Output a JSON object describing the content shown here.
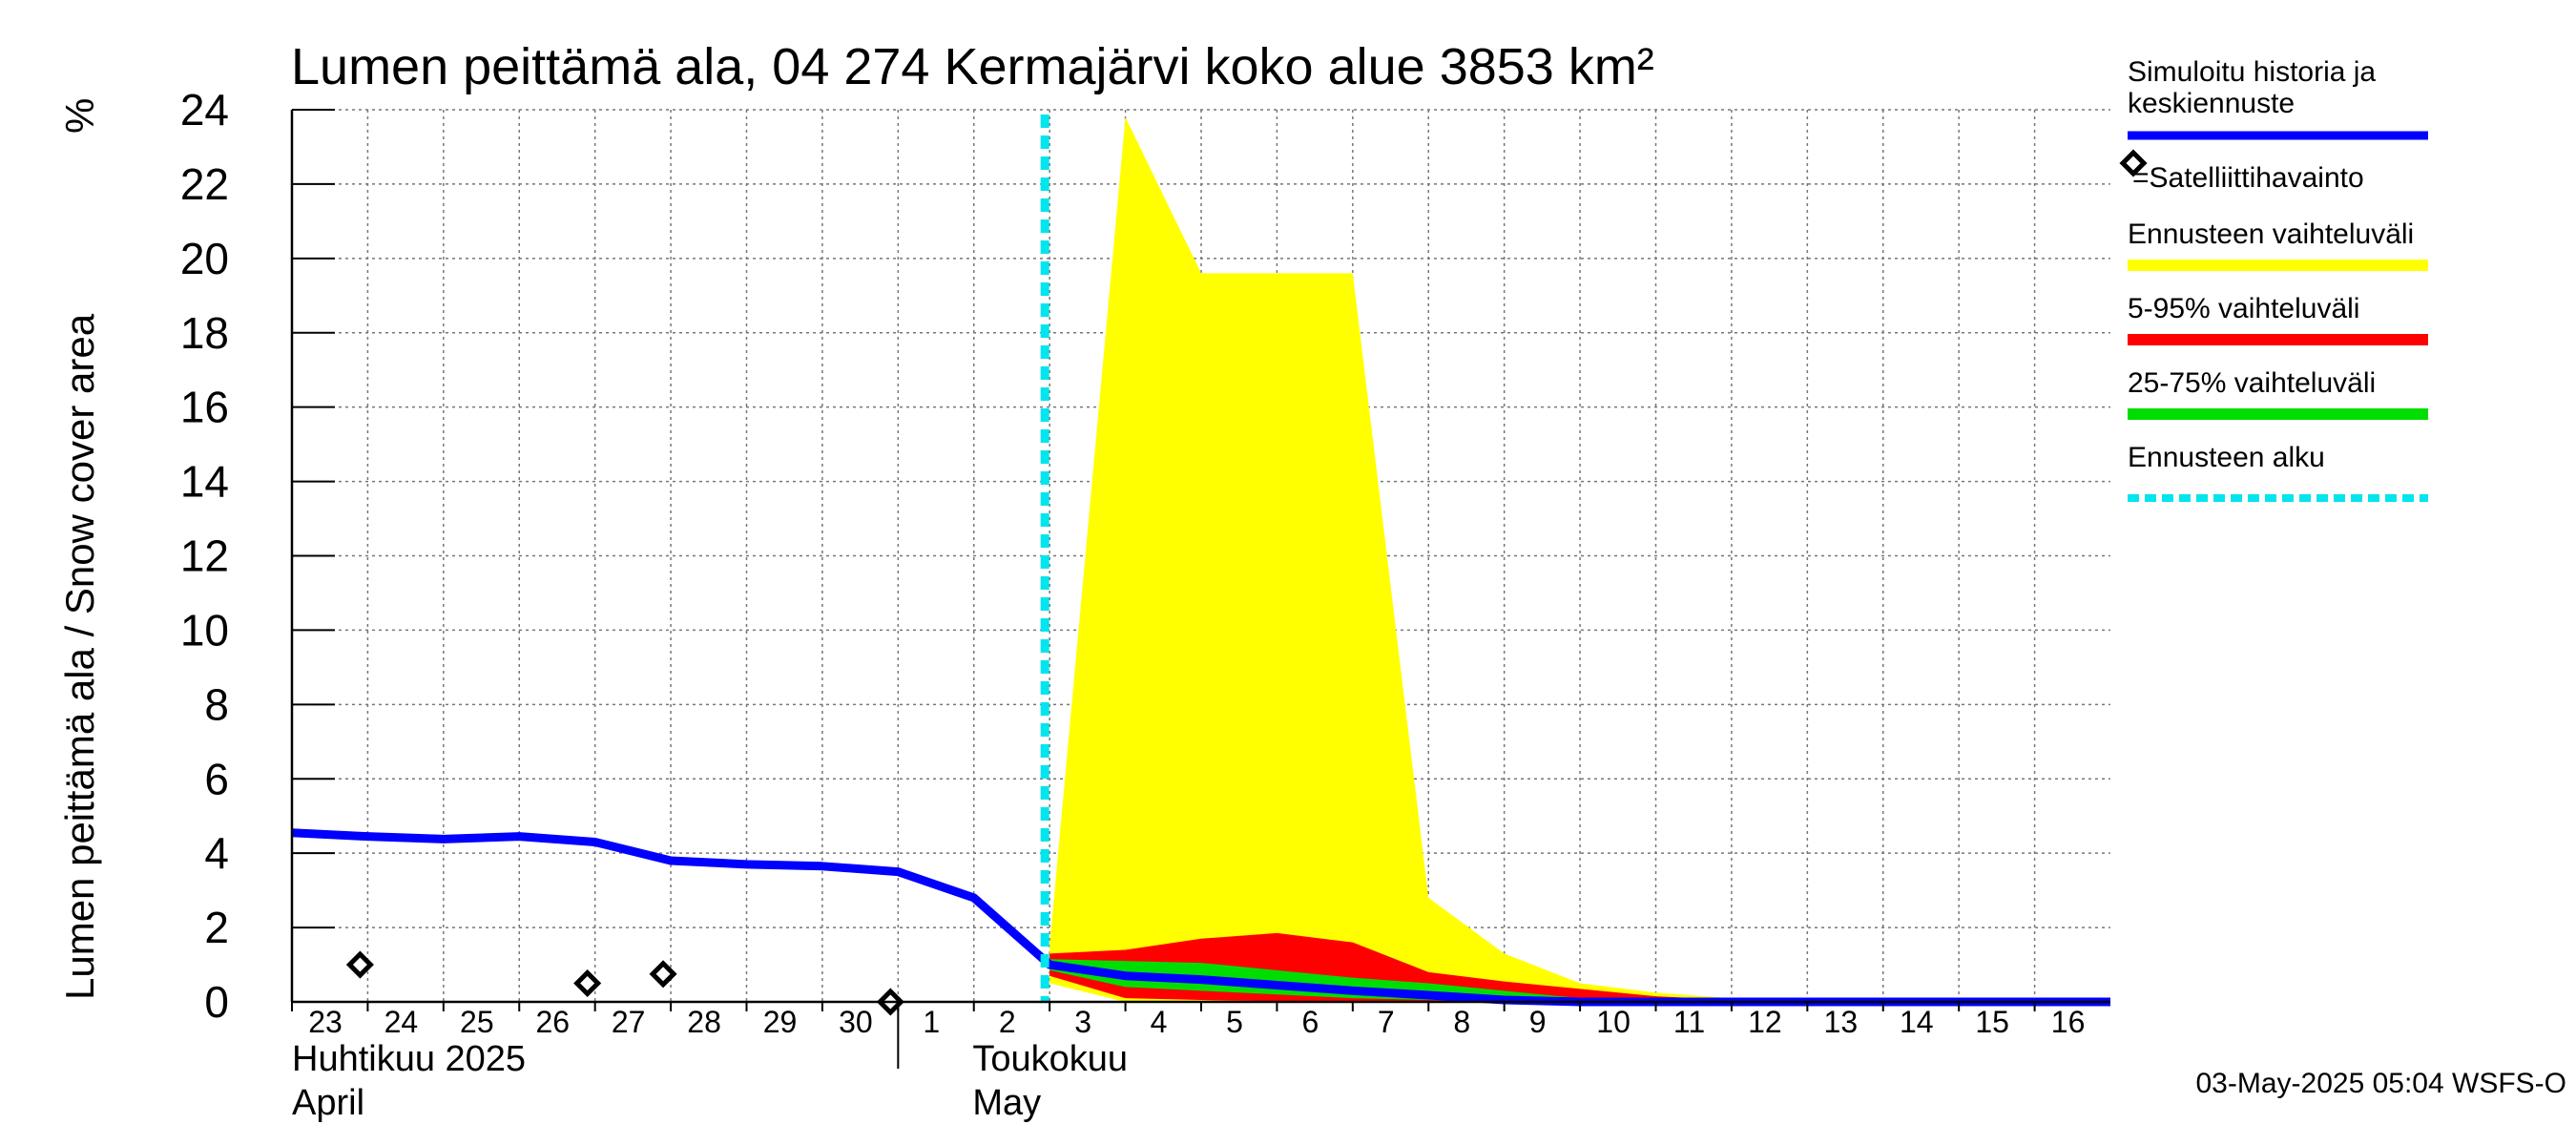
{
  "chart_data": {
    "type": "area",
    "title": "Lumen peittämä ala, 04 274 Kermajärvi koko alue 3853 km²",
    "ylabel": "Lumen peittämä ala / Snow cover area",
    "yunit": "%",
    "ylim": [
      0,
      24
    ],
    "yticks": [
      0,
      2,
      4,
      6,
      8,
      10,
      12,
      14,
      16,
      18,
      20,
      22,
      24
    ],
    "xlim": [
      "2025-04-23",
      "2025-05-17"
    ],
    "xtick_dates": [
      "2025-04-23",
      "2025-04-24",
      "2025-04-25",
      "2025-04-26",
      "2025-04-27",
      "2025-04-28",
      "2025-04-29",
      "2025-04-30",
      "2025-05-01",
      "2025-05-02",
      "2025-05-03",
      "2025-05-04",
      "2025-05-05",
      "2025-05-06",
      "2025-05-07",
      "2025-05-08",
      "2025-05-09",
      "2025-05-10",
      "2025-05-11",
      "2025-05-12",
      "2025-05-13",
      "2025-05-14",
      "2025-05-15",
      "2025-05-16"
    ],
    "xtick_labels": [
      "23",
      "24",
      "25",
      "26",
      "27",
      "28",
      "29",
      "30",
      "1",
      "2",
      "3",
      "4",
      "5",
      "6",
      "7",
      "8",
      "9",
      "10",
      "11",
      "12",
      "13",
      "14",
      "15",
      "16"
    ],
    "month_labels": [
      {
        "date": "2025-04-23",
        "fi": "Huhtikuu  2025",
        "en": "April"
      },
      {
        "date": "2025-05-01",
        "fi": "Toukokuu",
        "en": "May"
      }
    ],
    "grid": true,
    "legend_position": "right",
    "forecast_start": "2025-05-03",
    "series": [
      {
        "name": "Simuloitu historia ja keskiennuste",
        "color": "#0000ff",
        "kind": "line",
        "x": [
          "2025-04-23",
          "2025-04-24",
          "2025-04-25",
          "2025-04-26",
          "2025-04-27",
          "2025-04-28",
          "2025-04-29",
          "2025-04-30",
          "2025-05-01",
          "2025-05-02",
          "2025-05-03",
          "2025-05-04",
          "2025-05-05",
          "2025-05-06",
          "2025-05-07",
          "2025-05-08",
          "2025-05-09",
          "2025-05-10",
          "2025-05-11",
          "2025-05-12",
          "2025-05-13",
          "2025-05-14",
          "2025-05-15",
          "2025-05-16",
          "2025-05-17"
        ],
        "y": [
          4.55,
          4.45,
          4.38,
          4.45,
          4.3,
          3.8,
          3.7,
          3.65,
          3.5,
          2.8,
          1.0,
          0.7,
          0.6,
          0.45,
          0.3,
          0.18,
          0.05,
          0.0,
          0.0,
          0.0,
          0.0,
          0.0,
          0.0,
          0.0,
          0.0
        ]
      },
      {
        "name": "Ennusteen vaihteluväli",
        "color": "#ffff00",
        "kind": "band",
        "x": [
          "2025-05-03",
          "2025-05-04",
          "2025-05-05",
          "2025-05-06",
          "2025-05-07",
          "2025-05-08",
          "2025-05-09",
          "2025-05-10",
          "2025-05-11",
          "2025-05-12",
          "2025-05-13",
          "2025-05-14",
          "2025-05-15",
          "2025-05-16",
          "2025-05-17"
        ],
        "upper": [
          1.5,
          23.8,
          19.6,
          19.6,
          19.6,
          2.8,
          1.3,
          0.5,
          0.25,
          0.1,
          0.05,
          0.02,
          0.0,
          0.0,
          0.0
        ],
        "lower": [
          0.5,
          0.0,
          0.0,
          0.0,
          0.0,
          0.0,
          0.0,
          0.0,
          0.0,
          0.0,
          0.0,
          0.0,
          0.0,
          0.0,
          0.0
        ]
      },
      {
        "name": "5-95% vaihteluväli",
        "color": "#ff0000",
        "kind": "band",
        "x": [
          "2025-05-03",
          "2025-05-04",
          "2025-05-05",
          "2025-05-06",
          "2025-05-07",
          "2025-05-08",
          "2025-05-09",
          "2025-05-10",
          "2025-05-11",
          "2025-05-12",
          "2025-05-13",
          "2025-05-14",
          "2025-05-15",
          "2025-05-16",
          "2025-05-17"
        ],
        "upper": [
          1.3,
          1.4,
          1.7,
          1.85,
          1.6,
          0.8,
          0.55,
          0.35,
          0.15,
          0.05,
          0.0,
          0.0,
          0.0,
          0.0,
          0.0
        ],
        "lower": [
          0.7,
          0.1,
          0.05,
          0.02,
          0.0,
          0.0,
          0.0,
          0.0,
          0.0,
          0.0,
          0.0,
          0.0,
          0.0,
          0.0,
          0.0
        ]
      },
      {
        "name": "25-75% vaihteluväli",
        "color": "#00dd00",
        "kind": "band",
        "x": [
          "2025-05-03",
          "2025-05-04",
          "2025-05-05",
          "2025-05-06",
          "2025-05-07",
          "2025-05-08",
          "2025-05-09",
          "2025-05-10",
          "2025-05-11",
          "2025-05-12",
          "2025-05-13",
          "2025-05-14",
          "2025-05-15",
          "2025-05-16",
          "2025-05-17"
        ],
        "upper": [
          1.15,
          1.1,
          1.05,
          0.85,
          0.65,
          0.5,
          0.3,
          0.1,
          0.02,
          0.0,
          0.0,
          0.0,
          0.0,
          0.0,
          0.0
        ],
        "lower": [
          0.85,
          0.4,
          0.3,
          0.2,
          0.1,
          0.05,
          0.0,
          0.0,
          0.0,
          0.0,
          0.0,
          0.0,
          0.0,
          0.0,
          0.0
        ]
      }
    ],
    "satellite_observations": {
      "name": "=Satelliittihavainto",
      "x": [
        "2025-04-24",
        "2025-04-27",
        "2025-04-28",
        "2025-05-01"
      ],
      "y": [
        1.0,
        0.5,
        0.75,
        0.0
      ]
    },
    "forecast_start_legend": "Ennusteen alku",
    "timestamp": "03-May-2025 05:04 WSFS-O"
  }
}
